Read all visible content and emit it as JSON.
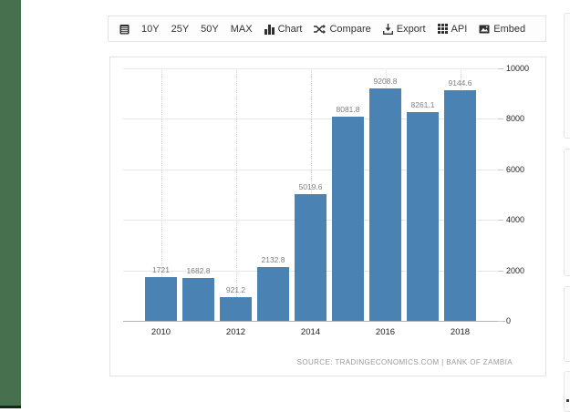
{
  "toolbar": {
    "leading_icon": "calendar-icon",
    "buttons": [
      {
        "label": "10Y"
      },
      {
        "label": "25Y"
      },
      {
        "label": "50Y"
      },
      {
        "label": "MAX"
      },
      {
        "label": "Chart",
        "icon": "bar-chart-icon"
      },
      {
        "label": "Compare",
        "icon": "compare-icon"
      },
      {
        "label": "Export",
        "icon": "download-icon"
      },
      {
        "label": "API",
        "icon": "grid-icon"
      },
      {
        "label": "Embed",
        "icon": "image-icon"
      }
    ]
  },
  "chart_data": {
    "type": "bar",
    "categories": [
      "2010",
      "2011",
      "2012",
      "2013",
      "2014",
      "2015",
      "2016",
      "2017",
      "2018"
    ],
    "values": [
      1721,
      1682.8,
      921.2,
      2132.8,
      5019.6,
      8081.8,
      9208.8,
      8261.1,
      9144.6
    ],
    "labels": [
      "1721",
      "1682.8",
      "921.2",
      "2132.8",
      "5019.6",
      "8081.8",
      "9208.8",
      "8261.1",
      "9144.6"
    ],
    "x_tick_labels": [
      "2010",
      "2012",
      "2014",
      "2016",
      "2018"
    ],
    "y_ticks": [
      0,
      2000,
      4000,
      6000,
      8000,
      10000
    ],
    "y_tick_labels": [
      "0",
      "2000",
      "4000",
      "6000",
      "8000",
      "10000"
    ],
    "ylim": [
      0,
      10000
    ],
    "grid": "on",
    "legend": "none",
    "bar_color": "#4A82B4",
    "source": "SOURCE: TRADINGECONOMICS.COM | BANK OF ZAMBIA"
  },
  "colors": {
    "accent_strip": "#47704F",
    "bar": "#4A82B4",
    "toolbar_text": "#333333",
    "grid_line": "#e8e8e8",
    "axis_line": "#b5b5b5",
    "value_label": "#808080",
    "tick_label": "#222222",
    "source_text": "#9a9a9a"
  }
}
